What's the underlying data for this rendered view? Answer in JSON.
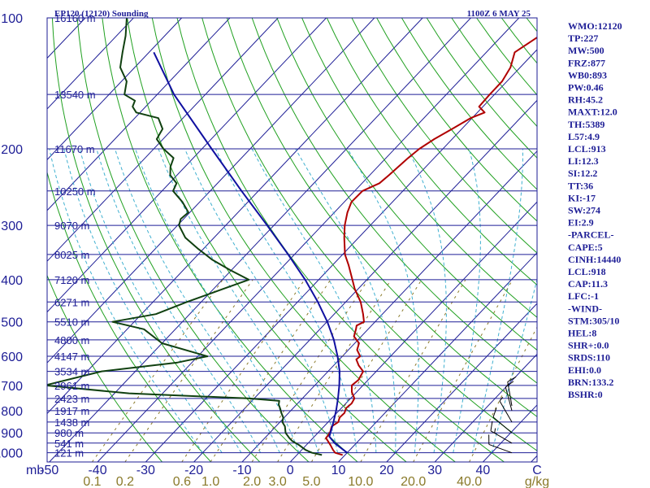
{
  "header": {
    "title": "EP120 (12120) Sounding",
    "datetime": "1100Z  6 MAY 25"
  },
  "indices": [
    "WMO:12120",
    "TP:227",
    "MW:500",
    "FRZ:877",
    "WB0:893",
    "PW:0.46",
    "RH:45.2",
    "MAXT:12.0",
    "TH:5389",
    "L57:4.9",
    "LCL:913",
    "LI:12.3",
    "SI:12.2",
    "TT:36",
    "KI:-17",
    "SW:274",
    "EI:2.9",
    "-PARCEL-",
    "CAPE:5",
    "CINH:14440",
    "LCL:918",
    "CAP:11.3",
    "LFC:-1",
    "-WIND-",
    "STM:305/10",
    "HEL:8",
    "SHR+:0.0",
    "SRDS:110",
    "EHI:0.0",
    "BRN:133.2",
    "BSHR:0"
  ],
  "colors": {
    "axis": "#1e1e96",
    "isobar": "#1e1e96",
    "isotherm": "#1e1e96",
    "dry_adiabat": "#20a020",
    "moist_adiabat": "#40b0d0",
    "mixing_ratio": "#8a7a2a",
    "temperature": "#b00000",
    "dewpoint": "#104010",
    "parcel": "#1010a0",
    "wind_barb": "#000000"
  },
  "chart_data": {
    "type": "line",
    "skew_t": true,
    "pressure_axis": {
      "label": "mb",
      "ticks": [
        100,
        200,
        300,
        400,
        500,
        600,
        700,
        800,
        900,
        1000
      ],
      "range": [
        100,
        1050
      ],
      "scale": "log"
    },
    "temperature_axis": {
      "ticks": [
        -50,
        -40,
        -30,
        -20,
        -10,
        0,
        10,
        20,
        30,
        40
      ],
      "tick_labels": [
        "-50",
        "-40",
        "-30",
        "-20",
        "-10",
        "0",
        "10",
        "20",
        "30",
        "40"
      ],
      "range": [
        -60,
        50
      ],
      "end_label": "C"
    },
    "mixing_ratio_axis": {
      "labels": [
        "0.1",
        "0.2",
        "0.6",
        "1.0",
        "2.0",
        "3.0",
        "5.0",
        "10.0",
        "20.0",
        "40.0"
      ],
      "unit": "g/kg"
    },
    "height_labels": [
      {
        "p": 100,
        "label": "16160 m"
      },
      {
        "p": 150,
        "label": "13540 m"
      },
      {
        "p": 200,
        "label": "11670 m"
      },
      {
        "p": 250,
        "label": "10250 m"
      },
      {
        "p": 300,
        "label": "9070 m"
      },
      {
        "p": 350,
        "label": "8025 m"
      },
      {
        "p": 400,
        "label": "7120 m"
      },
      {
        "p": 450,
        "label": "6271 m"
      },
      {
        "p": 500,
        "label": "5510 m"
      },
      {
        "p": 550,
        "label": "4800 m"
      },
      {
        "p": 600,
        "label": "4147 m"
      },
      {
        "p": 650,
        "label": "3534 m"
      },
      {
        "p": 700,
        "label": "2961 m"
      },
      {
        "p": 750,
        "label": "2423 m"
      },
      {
        "p": 800,
        "label": "1917 m"
      },
      {
        "p": 850,
        "label": "1438 m"
      },
      {
        "p": 900,
        "label": "980 m"
      },
      {
        "p": 950,
        "label": "541 m"
      },
      {
        "p": 1000,
        "label": "121 m"
      }
    ],
    "series": [
      {
        "key": "temperature",
        "p": [
          1012,
          1000,
          985,
          960,
          940,
          925,
          900,
          870,
          850,
          830,
          810,
          790,
          770,
          750,
          725,
          700,
          680,
          650,
          630,
          610,
          600,
          580,
          560,
          540,
          520,
          510,
          500,
          480,
          450,
          420,
          400,
          370,
          350,
          320,
          300,
          280,
          265,
          250,
          240,
          230,
          210,
          200,
          190,
          180,
          170,
          165,
          160,
          150,
          140,
          130,
          120,
          110,
          100
        ],
        "t": [
          9.5,
          7.5,
          6.5,
          5.0,
          3.7,
          2.7,
          2.5,
          1.6,
          2.1,
          1.5,
          1.6,
          1.0,
          1.2,
          0.8,
          -1.0,
          -2.3,
          -2.0,
          -2.7,
          -4.8,
          -6.5,
          -6.3,
          -8.2,
          -9.1,
          -11.5,
          -12.5,
          -13.1,
          -12.3,
          -14.0,
          -16.9,
          -20.7,
          -23.0,
          -26.7,
          -29.5,
          -33.0,
          -35.3,
          -37.3,
          -38.5,
          -38.4,
          -36.4,
          -36.0,
          -35.4,
          -34.9,
          -33.7,
          -32.0,
          -30.3,
          -28.5,
          -30.8,
          -31.0,
          -31.0,
          -32.0,
          -34.1,
          -32.2,
          -31.0
        ]
      },
      {
        "key": "dewpoint",
        "p": [
          1012,
          1000,
          985,
          960,
          940,
          925,
          900,
          870,
          850,
          830,
          810,
          790,
          775,
          760,
          750,
          730,
          700,
          650,
          620,
          600,
          560,
          520,
          500,
          480,
          450,
          420,
          400,
          380,
          360,
          340,
          320,
          300,
          290,
          280,
          265,
          250,
          240,
          230,
          220,
          210,
          200,
          190,
          180,
          170,
          165,
          160,
          155,
          150,
          140,
          130,
          120,
          110,
          100
        ],
        "t": [
          5.2,
          2.7,
          0.8,
          -1.5,
          -3.7,
          -4.9,
          -6.7,
          -8.1,
          -9.5,
          -10.2,
          -11.5,
          -12.7,
          -13.7,
          -14.3,
          -21.0,
          -47.0,
          -66.0,
          -57.0,
          -43.0,
          -38.0,
          -50.0,
          -56.5,
          -64.5,
          -57.0,
          -53.0,
          -48.0,
          -44.5,
          -50.3,
          -56.0,
          -61.0,
          -66.0,
          -69.7,
          -70.6,
          -70.3,
          -73.6,
          -77.7,
          -78.5,
          -81.4,
          -83.0,
          -84.1,
          -88.0,
          -91.3,
          -92.1,
          -95.1,
          -100.8,
          -102.7,
          -103.4,
          -106.8,
          -108.9,
          -113.0,
          -115.5,
          -118.1,
          -121.4
        ]
      },
      {
        "key": "parcel",
        "p": [
          1000,
          950,
          918,
          900,
          850,
          800,
          750,
          700,
          650,
          600,
          550,
          500,
          450,
          400,
          350,
          300,
          250,
          200,
          150,
          120
        ],
        "t": [
          10.0,
          5.5,
          3.1,
          2.6,
          1.1,
          -0.6,
          -2.6,
          -4.9,
          -7.6,
          -11.0,
          -15.0,
          -19.9,
          -25.8,
          -32.8,
          -41.3,
          -51.4,
          -63.5,
          -78.0,
          -96.5,
          -109.0
        ]
      }
    ],
    "wind_barbs": [
      {
        "p": 1000,
        "dir": 290,
        "spd": 10
      },
      {
        "p": 950,
        "dir": 300,
        "spd": 15
      },
      {
        "p": 900,
        "dir": 310,
        "spd": 10
      },
      {
        "p": 850,
        "dir": 330,
        "spd": 5
      },
      {
        "p": 800,
        "dir": 345,
        "spd": 10
      },
      {
        "p": 780,
        "dir": 350,
        "spd": 10
      }
    ]
  }
}
